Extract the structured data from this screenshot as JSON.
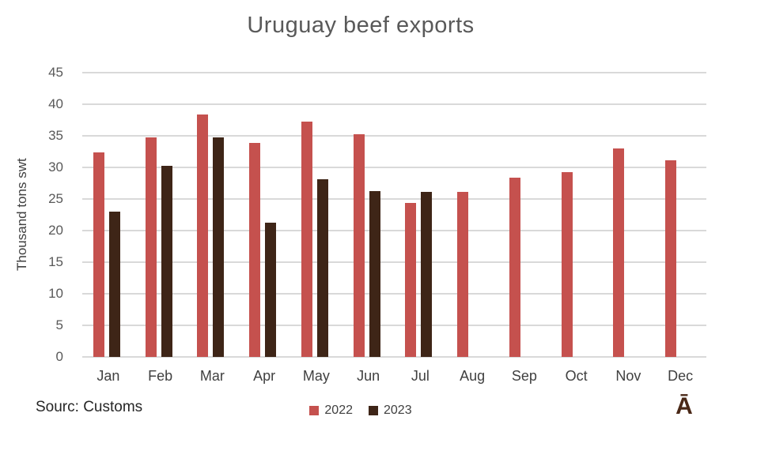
{
  "title": "Uruguay beef exports",
  "source_note": "Sourc: Customs",
  "logo_glyph": "Ā",
  "colors": {
    "series_2022": "#c5514e",
    "series_2023": "#3e2517",
    "gridline": "#d9d9d9",
    "title_text": "#595959",
    "axis_text": "#404040",
    "logo": "#4a2817"
  },
  "chart_data": {
    "type": "bar",
    "title": "Uruguay beef exports",
    "xlabel": "",
    "ylabel": "Thousand tons swt",
    "categories": [
      "Jan",
      "Feb",
      "Mar",
      "Apr",
      "May",
      "Jun",
      "Jul",
      "Aug",
      "Sep",
      "Oct",
      "Nov",
      "Dec"
    ],
    "series": [
      {
        "name": "2022",
        "color": "#c5514e",
        "values": [
          32.4,
          34.8,
          38.4,
          33.9,
          37.3,
          35.2,
          24.4,
          26.1,
          28.4,
          29.3,
          33.0,
          31.1
        ]
      },
      {
        "name": "2023",
        "color": "#3e2517",
        "values": [
          23.0,
          30.2,
          34.8,
          21.2,
          28.1,
          26.3,
          26.1,
          null,
          null,
          null,
          null,
          null
        ]
      }
    ],
    "ylim": [
      0,
      45
    ],
    "yticks": [
      0,
      5,
      10,
      15,
      20,
      25,
      30,
      35,
      40,
      45
    ],
    "grid": true,
    "legend_position": "bottom"
  }
}
